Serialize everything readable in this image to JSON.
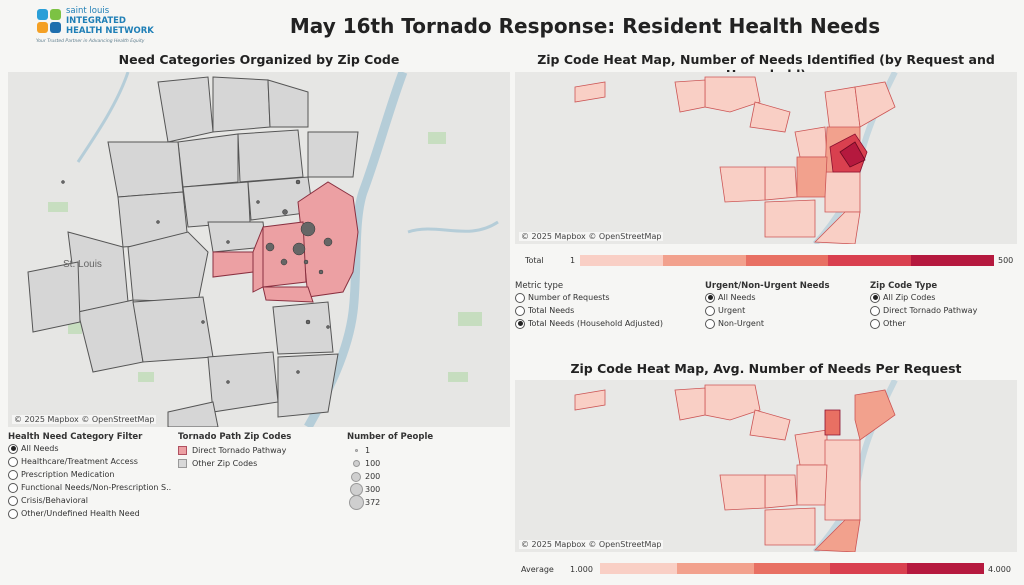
{
  "logo": {
    "line1": "saint louis",
    "line2": "INTEGRATED",
    "line3": "HEALTH NETWORK",
    "tagline": "Your Trusted Partner in Advancing Health Equity"
  },
  "title": "May 16th Tornado Response: Resident Health Needs",
  "left_map": {
    "title": "Need Categories Organized by Zip Code",
    "city_label": "St. Louis",
    "credit": "© 2025 Mapbox © OpenStreetMap"
  },
  "category_filter": {
    "title": "Health Need Category Filter",
    "options": [
      "All Needs",
      "Healthcare/Treatment Access",
      "Prescription Medication",
      "Functional Needs/Non-Prescription S..",
      "Crisis/Behavioral",
      "Other/Undefined Health Need"
    ],
    "selected": 0
  },
  "tornado_legend": {
    "title": "Tornado Path Zip Codes",
    "items": [
      {
        "label": "Direct Tornado Pathway",
        "color": "#eca0a3"
      },
      {
        "label": "Other Zip Codes",
        "color": "#d8d8d8"
      }
    ]
  },
  "people_legend": {
    "title": "Number of People",
    "items": [
      "1",
      "100",
      "200",
      "300",
      "372"
    ]
  },
  "heat1": {
    "title": "Zip Code Heat Map, Number of Needs Identified (by Request and Household)",
    "credit": "© 2025 Mapbox © OpenStreetMap",
    "legend_label": "Total",
    "min": "1",
    "max": "500"
  },
  "metric": {
    "title": "Metric type",
    "options": [
      "Number of Requests",
      "Total Needs",
      "Total Needs (Household Adjusted)"
    ],
    "selected": 2
  },
  "urgency": {
    "title": "Urgent/Non-Urgent Needs",
    "options": [
      "All Needs",
      "Urgent",
      "Non-Urgent"
    ],
    "selected": 0
  },
  "zip_type": {
    "title": "Zip Code Type",
    "options": [
      "All Zip Codes",
      "Direct Tornado Pathway",
      "Other"
    ],
    "selected": 0
  },
  "heat2": {
    "title": "Zip Code Heat Map, Avg. Number of Needs Per Request",
    "credit": "© 2025 Mapbox © OpenStreetMap",
    "legend_label": "Average",
    "min": "1.000",
    "max": "4.000"
  },
  "colors": {
    "ramp": [
      "#f9cfc5",
      "#f2a18d",
      "#e87063",
      "#d9404f",
      "#b5193e"
    ],
    "tornado": "#eca0a3"
  }
}
